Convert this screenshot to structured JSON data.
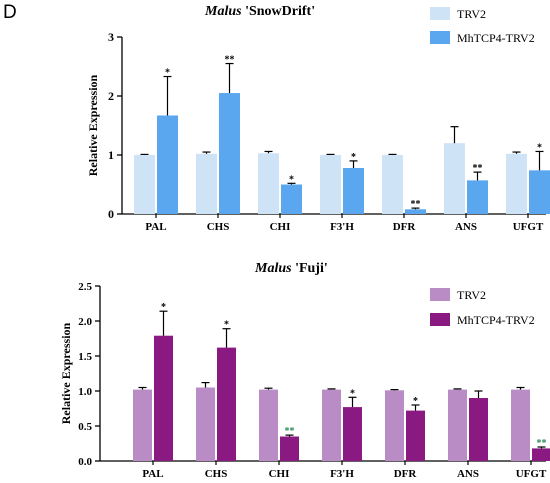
{
  "figure": {
    "panel_letter": "D"
  },
  "chart_data": [
    {
      "type": "bar",
      "title_italic": "Malus",
      "title_rest": " 'SnowDrift'",
      "ylabel": "Relative Expression",
      "ylim": [
        0,
        3
      ],
      "yticks": [
        "0",
        "1",
        "2",
        "3"
      ],
      "ytick_values": [
        0,
        1,
        2,
        3
      ],
      "categories": [
        "PAL",
        "CHS",
        "CHI",
        "F3'H",
        "DFR",
        "ANS",
        "UFGT"
      ],
      "legend_position": "top-right",
      "series": [
        {
          "name": "TRV2",
          "color": "#cfe3f7",
          "values": [
            1.0,
            1.02,
            1.03,
            1.0,
            1.0,
            1.2,
            1.02
          ],
          "errors": [
            0.01,
            0.03,
            0.03,
            0.01,
            0.01,
            0.28,
            0.03
          ],
          "sig": [
            "",
            "",
            "",
            "",
            "",
            "",
            ""
          ]
        },
        {
          "name": "MhTCP4-TRV2",
          "color": "#5aa7f0",
          "values": [
            1.67,
            2.05,
            0.5,
            0.78,
            0.08,
            0.57,
            0.74
          ],
          "errors": [
            0.66,
            0.5,
            0.02,
            0.12,
            0.02,
            0.14,
            0.32
          ],
          "sig": [
            "*",
            "**",
            "*",
            "*",
            "**",
            "**",
            "*"
          ]
        }
      ]
    },
    {
      "type": "bar",
      "title_italic": "Malus",
      "title_rest": " 'Fuji'",
      "ylabel": "Relative Expression",
      "ylim": [
        0,
        2.5
      ],
      "yticks": [
        "0.0",
        "0.5",
        "1.0",
        "1.5",
        "2.0",
        "2.5"
      ],
      "ytick_values": [
        0,
        0.5,
        1.0,
        1.5,
        2.0,
        2.5
      ],
      "categories": [
        "PAL",
        "CHS",
        "CHI",
        "F3'H",
        "DFR",
        "ANS",
        "UFGT"
      ],
      "legend_position": "top-right",
      "series": [
        {
          "name": "TRV2",
          "color": "#b98cc6",
          "values": [
            1.02,
            1.05,
            1.02,
            1.02,
            1.01,
            1.02,
            1.02
          ],
          "errors": [
            0.03,
            0.07,
            0.02,
            0.01,
            0.01,
            0.01,
            0.03
          ],
          "sig": [
            "",
            "",
            "",
            "",
            "",
            "",
            ""
          ]
        },
        {
          "name": "MhTCP4-TRV2",
          "color": "#8a1a82",
          "values": [
            1.79,
            1.62,
            0.35,
            0.77,
            0.72,
            0.9,
            0.18
          ],
          "errors": [
            0.35,
            0.27,
            0.02,
            0.14,
            0.08,
            0.1,
            0.02
          ],
          "sig": [
            "*",
            "*",
            "**",
            "*",
            "*",
            "",
            "**"
          ]
        }
      ]
    }
  ]
}
